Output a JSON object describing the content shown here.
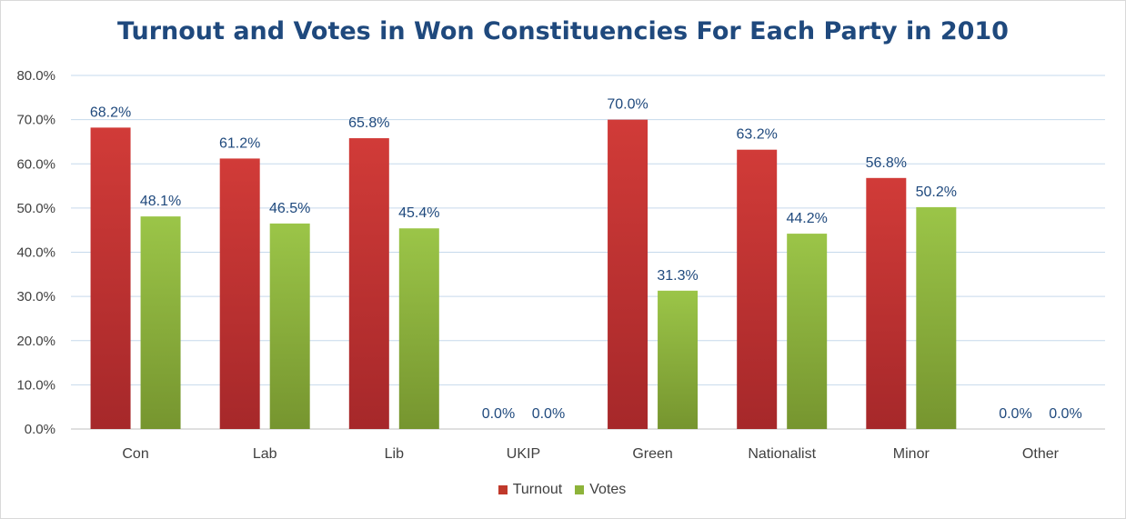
{
  "chart_data": {
    "type": "bar",
    "title": "Turnout and Votes in Won Constituencies For Each Party in 2010",
    "xlabel": "",
    "ylabel": "",
    "categories": [
      "Con",
      "Lab",
      "Lib",
      "UKIP",
      "Green",
      "Nationalist",
      "Minor",
      "Other"
    ],
    "series": [
      {
        "name": "Turnout",
        "values": [
          68.2,
          61.2,
          65.8,
          0.0,
          70.0,
          63.2,
          56.8,
          0.0
        ],
        "labels": [
          "68.2%",
          "61.2%",
          "65.8%",
          "0.0%",
          "70.0%",
          "63.2%",
          "56.8%",
          "0.0%"
        ],
        "color": "#c0392b"
      },
      {
        "name": "Votes",
        "values": [
          48.1,
          46.5,
          45.4,
          0.0,
          31.3,
          44.2,
          50.2,
          0.0
        ],
        "labels": [
          "48.1%",
          "46.5%",
          "45.4%",
          "0.0%",
          "31.3%",
          "44.2%",
          "50.2%",
          "0.0%"
        ],
        "color": "#8db33a"
      }
    ],
    "ylim": [
      0,
      80
    ],
    "yticks": [
      "0.0%",
      "10.0%",
      "20.0%",
      "30.0%",
      "40.0%",
      "50.0%",
      "60.0%",
      "70.0%",
      "80.0%"
    ],
    "grid": true,
    "legend_position": "bottom"
  }
}
